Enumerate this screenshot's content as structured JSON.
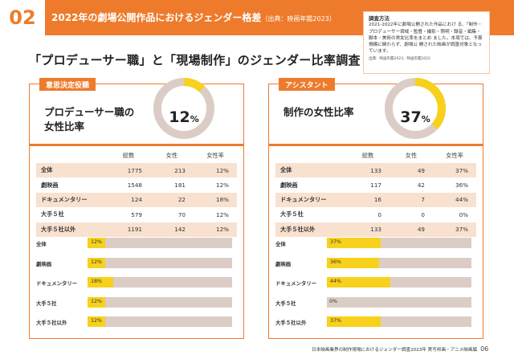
{
  "header": {
    "number": "02",
    "title": "2022年の劇場公開作品におけるジェンダー格差",
    "source": "（出典：映画年鑑2023）"
  },
  "survey": {
    "title": "調査方法",
    "body": "2021-2022年に劇場公開された作品におけ る、「制作・プロデューサー領域・監督・撮影・照明・録音・編集・脚本・美術の男女比率をまとめ ました。本項では、予算規模に関わらず、劇場公 開された映画が調査対象となっています。",
    "note": "出典：映画年鑑2023、映画年鑑2022"
  },
  "main_title": "「プロデューサー職」と「現場制作」のジェンダー比率調査",
  "panels": [
    {
      "tag": "意思決定役職",
      "subtitle_line1": "プロデューサー職の",
      "subtitle_line2": "女性比率",
      "donut_number": "12",
      "donut_unit": "%",
      "donut_fraction": 0.12,
      "columns": [
        "総数",
        "女性",
        "女性率"
      ],
      "rows": [
        {
          "label": "全体",
          "total": "1775",
          "female": "213",
          "rate": "12%"
        },
        {
          "label": "劇映画",
          "total": "1548",
          "female": "181",
          "rate": "12%"
        },
        {
          "label": "ドキュメンタリー",
          "total": "124",
          "female": "22",
          "rate": "18%"
        },
        {
          "label": "大手５社",
          "total": "579",
          "female": "70",
          "rate": "12%"
        },
        {
          "label": "大手５社以外",
          "total": "1191",
          "female": "142",
          "rate": "12%"
        }
      ],
      "bars": [
        {
          "label": "全体",
          "value": 12,
          "text": "12%"
        },
        {
          "label": "劇映画",
          "value": 12,
          "text": "12%"
        },
        {
          "label": "ドキュメンタリー",
          "value": 18,
          "text": "18%"
        },
        {
          "label": "大手５社",
          "value": 12,
          "text": "12%"
        },
        {
          "label": "大手５社以外",
          "value": 12,
          "text": "12%"
        }
      ]
    },
    {
      "tag": "アシスタント",
      "subtitle_line1": "制作の女性比率",
      "subtitle_line2": "",
      "donut_number": "37",
      "donut_unit": "%",
      "donut_fraction": 0.37,
      "columns": [
        "総数",
        "女性",
        "女性率"
      ],
      "rows": [
        {
          "label": "全体",
          "total": "133",
          "female": "49",
          "rate": "37%"
        },
        {
          "label": "劇映画",
          "total": "117",
          "female": "42",
          "rate": "36%"
        },
        {
          "label": "ドキュメンタリー",
          "total": "16",
          "female": "7",
          "rate": "44%"
        },
        {
          "label": "大手５社",
          "total": "0",
          "female": "0",
          "rate": "0%"
        },
        {
          "label": "大手５社以外",
          "total": "133",
          "female": "49",
          "rate": "37%"
        }
      ],
      "bars": [
        {
          "label": "全体",
          "value": 37,
          "text": "37%"
        },
        {
          "label": "劇映画",
          "value": 36,
          "text": "36%"
        },
        {
          "label": "ドキュメンタリー",
          "value": 44,
          "text": "44%"
        },
        {
          "label": "大手５社",
          "value": 0,
          "text": "0%"
        },
        {
          "label": "大手５社以外",
          "value": 37,
          "text": "37%"
        }
      ]
    }
  ],
  "colors": {
    "accent": "#ee7b2c",
    "bar_fill": "#f7d11b",
    "bar_track": "#dbcdc6",
    "row_tint": "#f9e1cf"
  },
  "footer": {
    "text": "日本映画業界の制作現場におけるジェンダー調査2023年  実写邦画・アニメ映画編",
    "page": "06"
  }
}
